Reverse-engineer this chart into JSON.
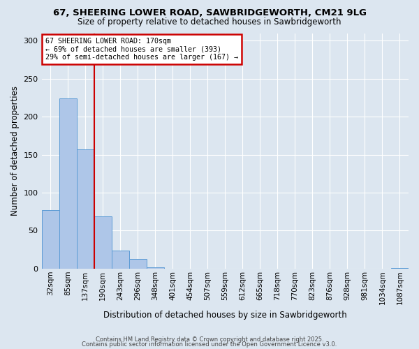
{
  "title1": "67, SHEERING LOWER ROAD, SAWBRIDGEWORTH, CM21 9LG",
  "title2": "Size of property relative to detached houses in Sawbridgeworth",
  "xlabel": "Distribution of detached houses by size in Sawbridgeworth",
  "ylabel": "Number of detached properties",
  "bin_labels": [
    "32sqm",
    "85sqm",
    "137sqm",
    "190sqm",
    "243sqm",
    "296sqm",
    "348sqm",
    "401sqm",
    "454sqm",
    "507sqm",
    "559sqm",
    "612sqm",
    "665sqm",
    "718sqm",
    "770sqm",
    "823sqm",
    "876sqm",
    "928sqm",
    "981sqm",
    "1034sqm",
    "1087sqm"
  ],
  "bar_values": [
    77,
    224,
    157,
    69,
    24,
    13,
    2,
    0,
    0,
    0,
    0,
    0,
    0,
    0,
    0,
    0,
    0,
    0,
    0,
    0,
    1
  ],
  "bar_color": "#aec6e8",
  "bar_edge_color": "#5b9bd5",
  "vline_x": 2.5,
  "vline_color": "#cc0000",
  "ylim": [
    0,
    310
  ],
  "yticks": [
    0,
    50,
    100,
    150,
    200,
    250,
    300
  ],
  "annotation_title": "67 SHEERING LOWER ROAD: 170sqm",
  "annotation_line1": "← 69% of detached houses are smaller (393)",
  "annotation_line2": "29% of semi-detached houses are larger (167) →",
  "annotation_box_color": "#ffffff",
  "annotation_box_edge": "#cc0000",
  "footer1": "Contains HM Land Registry data © Crown copyright and database right 2025.",
  "footer2": "Contains public sector information licensed under the Open Government Licence v3.0.",
  "bg_color": "#dce6f0",
  "plot_bg_color": "#dce6f0"
}
